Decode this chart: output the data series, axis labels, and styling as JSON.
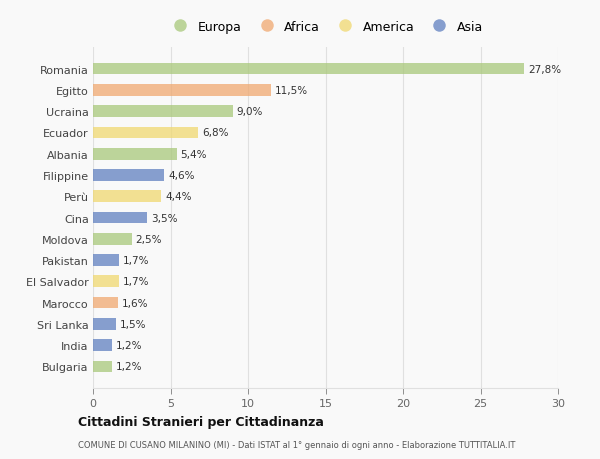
{
  "categories": [
    "Romania",
    "Egitto",
    "Ucraina",
    "Ecuador",
    "Albania",
    "Filippine",
    "Perù",
    "Cina",
    "Moldova",
    "Pakistan",
    "El Salvador",
    "Marocco",
    "Sri Lanka",
    "India",
    "Bulgaria"
  ],
  "values": [
    27.8,
    11.5,
    9.0,
    6.8,
    5.4,
    4.6,
    4.4,
    3.5,
    2.5,
    1.7,
    1.7,
    1.6,
    1.5,
    1.2,
    1.2
  ],
  "labels": [
    "27,8%",
    "11,5%",
    "9,0%",
    "6,8%",
    "5,4%",
    "4,6%",
    "4,4%",
    "3,5%",
    "2,5%",
    "1,7%",
    "1,7%",
    "1,6%",
    "1,5%",
    "1,2%",
    "1,2%"
  ],
  "continents": [
    "Europa",
    "Africa",
    "Europa",
    "America",
    "Europa",
    "Asia",
    "America",
    "Asia",
    "Europa",
    "Asia",
    "America",
    "Africa",
    "Asia",
    "Asia",
    "Europa"
  ],
  "colors": {
    "Europa": "#a8c87a",
    "Africa": "#f0a870",
    "America": "#f0d870",
    "Asia": "#6080c0"
  },
  "legend_order": [
    "Europa",
    "Africa",
    "America",
    "Asia"
  ],
  "title": "Cittadini Stranieri per Cittadinanza",
  "subtitle": "COMUNE DI CUSANO MILANINO (MI) - Dati ISTAT al 1° gennaio di ogni anno - Elaborazione TUTTITALIA.IT",
  "xlim": [
    0,
    30
  ],
  "xticks": [
    0,
    5,
    10,
    15,
    20,
    25,
    30
  ],
  "background_color": "#f9f9f9",
  "bar_alpha": 0.75,
  "grid_color": "#e0e0e0"
}
